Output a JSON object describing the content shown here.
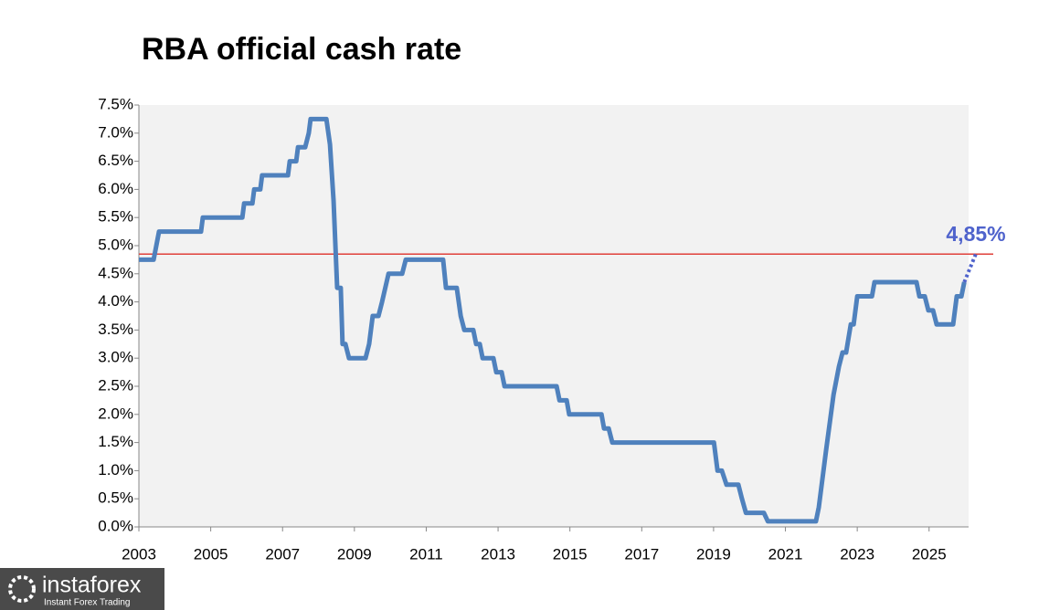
{
  "chart_data": {
    "type": "line",
    "title": "RBA official cash rate",
    "xlim": [
      2003,
      2026.1
    ],
    "xticks": [
      2003,
      2005,
      2007,
      2009,
      2011,
      2013,
      2015,
      2017,
      2019,
      2021,
      2023,
      2025
    ],
    "ylim": [
      0,
      7.5
    ],
    "yticks": [
      {
        "value": 0,
        "label": "0.0%"
      },
      {
        "value": 0.5,
        "label": "0.5%"
      },
      {
        "value": 1,
        "label": "1.0%"
      },
      {
        "value": 1.5,
        "label": "1.5%"
      },
      {
        "value": 2,
        "label": "2.0%"
      },
      {
        "value": 2.5,
        "label": "2.5%"
      },
      {
        "value": 3,
        "label": "3.0%"
      },
      {
        "value": 3.5,
        "label": "3.5%"
      },
      {
        "value": 4,
        "label": "4.0%"
      },
      {
        "value": 4.5,
        "label": "4.5%"
      },
      {
        "value": 5,
        "label": "5.0%"
      },
      {
        "value": 5.5,
        "label": "5.5%"
      },
      {
        "value": 6,
        "label": "6.0%"
      },
      {
        "value": 6.5,
        "label": "6.5%"
      },
      {
        "value": 7,
        "label": "7.0%"
      },
      {
        "value": 7.5,
        "label": "7.5%"
      }
    ],
    "grid": false,
    "reference_line": {
      "value": 4.85,
      "color": "#e0403a"
    },
    "annotation": {
      "text": "4,85%",
      "color": "#4f63cc"
    },
    "series": [
      {
        "color": "#4f81bd",
        "style": "solid",
        "x": [
          2003.0,
          2003.41,
          2003.56,
          2004.73,
          2004.78,
          2005.88,
          2005.93,
          2006.16,
          2006.21,
          2006.38,
          2006.43,
          2007.15,
          2007.2,
          2007.38,
          2007.43,
          2007.63,
          2007.73,
          2007.78,
          2008.22,
          2008.32,
          2008.42,
          2008.52,
          2008.62,
          2008.67,
          2008.75,
          2008.85,
          2009.31,
          2009.41,
          2009.51,
          2009.67,
          2009.77,
          2009.95,
          2010.33,
          2010.43,
          2011.47,
          2011.55,
          2011.85,
          2011.96,
          2012.06,
          2012.31,
          2012.39,
          2012.49,
          2012.57,
          2012.87,
          2012.95,
          2013.1,
          2013.18,
          2014.63,
          2014.71,
          2014.91,
          2014.98,
          2015.88,
          2015.95,
          2016.08,
          2016.18,
          2019.01,
          2019.11,
          2019.23,
          2019.36,
          2019.69,
          2019.79,
          2019.9,
          2020.4,
          2020.51,
          2021.85,
          2021.93,
          2022.13,
          2022.34,
          2022.49,
          2022.59,
          2022.69,
          2022.82,
          2022.9,
          2023.0,
          2023.41,
          2023.48,
          2024.65,
          2024.73,
          2024.88,
          2024.98,
          2025.11,
          2025.21,
          2025.67,
          2025.77,
          2025.9,
          2025.98
        ],
        "values": [
          4.75,
          4.75,
          5.25,
          5.25,
          5.5,
          5.5,
          5.75,
          5.75,
          6.0,
          6.0,
          6.25,
          6.25,
          6.5,
          6.5,
          6.75,
          6.75,
          7.0,
          7.25,
          7.25,
          6.8,
          5.8,
          4.25,
          4.25,
          3.25,
          3.25,
          3.0,
          3.0,
          3.25,
          3.75,
          3.75,
          4.0,
          4.5,
          4.5,
          4.75,
          4.75,
          4.25,
          4.25,
          3.75,
          3.5,
          3.5,
          3.25,
          3.25,
          3.0,
          3.0,
          2.75,
          2.75,
          2.5,
          2.5,
          2.25,
          2.25,
          2.0,
          2.0,
          1.75,
          1.75,
          1.5,
          1.5,
          1.0,
          1.0,
          0.75,
          0.75,
          0.5,
          0.25,
          0.25,
          0.1,
          0.1,
          0.35,
          1.35,
          2.35,
          2.85,
          3.1,
          3.1,
          3.6,
          3.6,
          4.1,
          4.1,
          4.35,
          4.35,
          4.1,
          4.1,
          3.85,
          3.85,
          3.6,
          3.6,
          4.1,
          4.1,
          4.35
        ]
      },
      {
        "color": "#4f63cc",
        "style": "dotted",
        "x": [
          2025.98,
          2026.3
        ],
        "values": [
          4.35,
          4.85
        ]
      }
    ],
    "watermark": {
      "brand": "instaforex",
      "tagline": "Instant Forex Trading"
    }
  }
}
